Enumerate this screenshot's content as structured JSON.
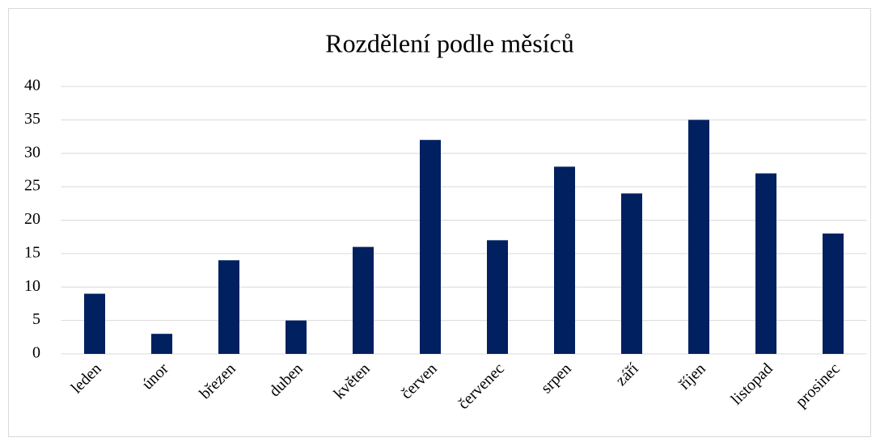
{
  "chart_data": {
    "type": "bar",
    "title": "Rozdělení podle měsíců",
    "categories": [
      "leden",
      "únor",
      "březen",
      "duben",
      "květen",
      "červen",
      "červenec",
      "srpen",
      "září",
      "říjen",
      "listopad",
      "prosinec"
    ],
    "values": [
      9,
      3,
      14,
      5,
      16,
      32,
      17,
      28,
      24,
      35,
      27,
      18
    ],
    "color": "#002060",
    "ylim": [
      0,
      40
    ],
    "yticks": [
      0,
      5,
      10,
      15,
      20,
      25,
      30,
      35,
      40
    ],
    "grid": true
  }
}
